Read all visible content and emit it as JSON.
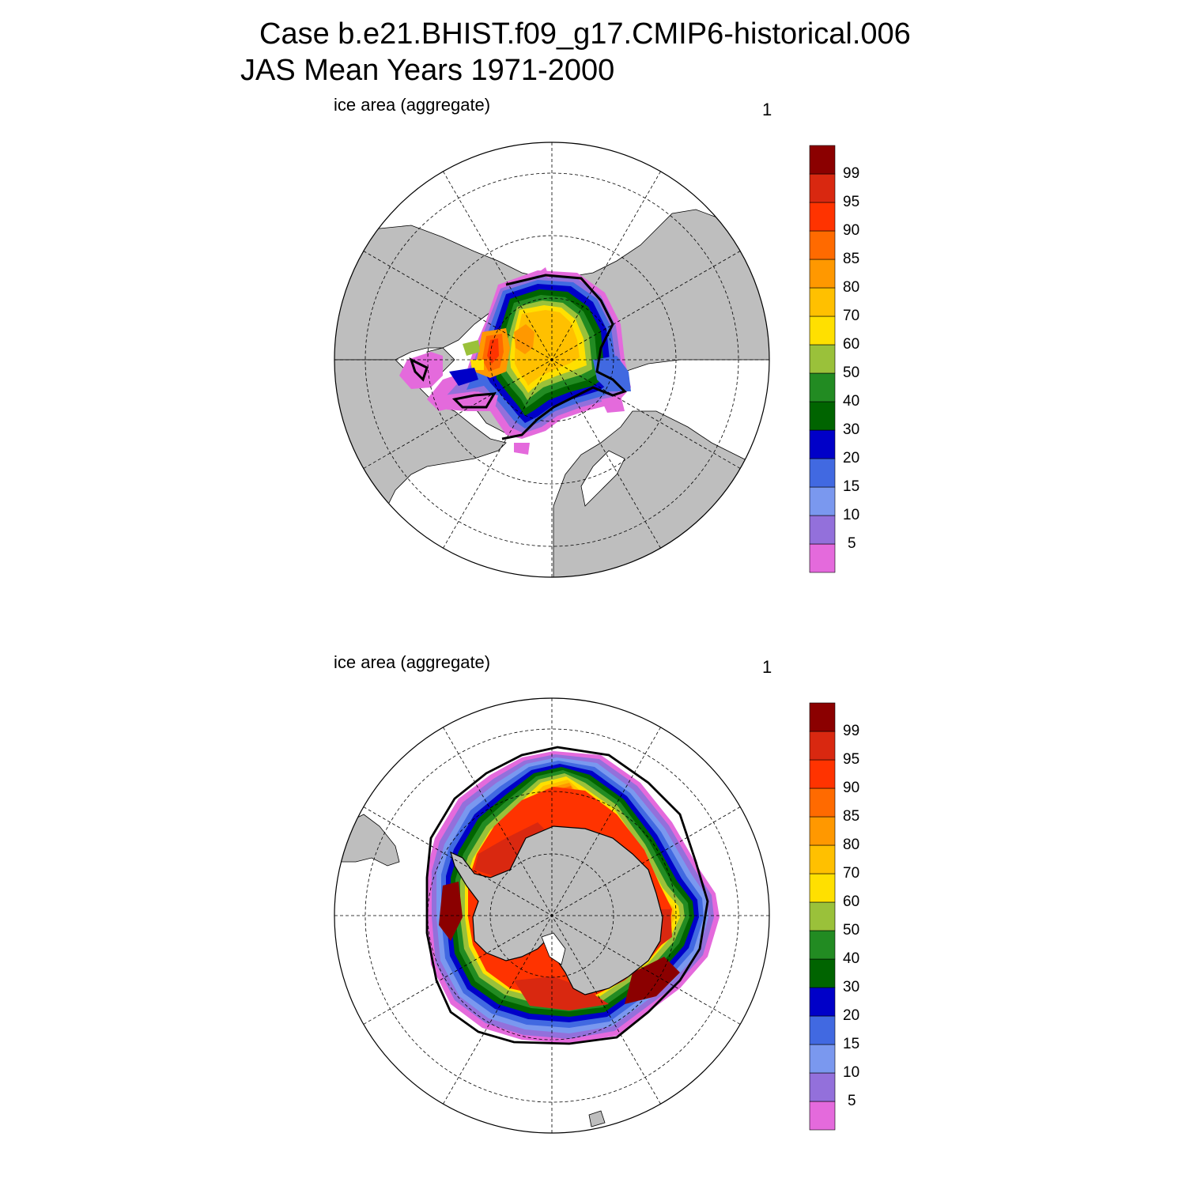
{
  "title_line1": "Case b.e21.BHIST.f09_g17.CMIP6-historical.006",
  "title_line2": "JAS Mean   Years 1971-2000",
  "colors": {
    "land": "#bebebe",
    "ocean": "#ffffff",
    "contour": "#000000",
    "levels": [
      "#e46adc",
      "#9370db",
      "#7a98ef",
      "#4169e1",
      "#0000c8",
      "#006400",
      "#228b22",
      "#9ac13a",
      "#ffe000",
      "#ffc000",
      "#ff9800",
      "#ff6a00",
      "#ff3300",
      "#d92810",
      "#8b0000"
    ]
  },
  "colorbar_labels": [
    "99",
    "95",
    "90",
    "85",
    "80",
    "70",
    "60",
    "50",
    "40",
    "30",
    "20",
    "15",
    "10",
    "5"
  ],
  "panels": [
    {
      "label": "ice area  (aggregate)",
      "number": "1",
      "hemisphere": "north"
    },
    {
      "label": "ice area  (aggregate)",
      "number": "1",
      "hemisphere": "south"
    }
  ]
}
